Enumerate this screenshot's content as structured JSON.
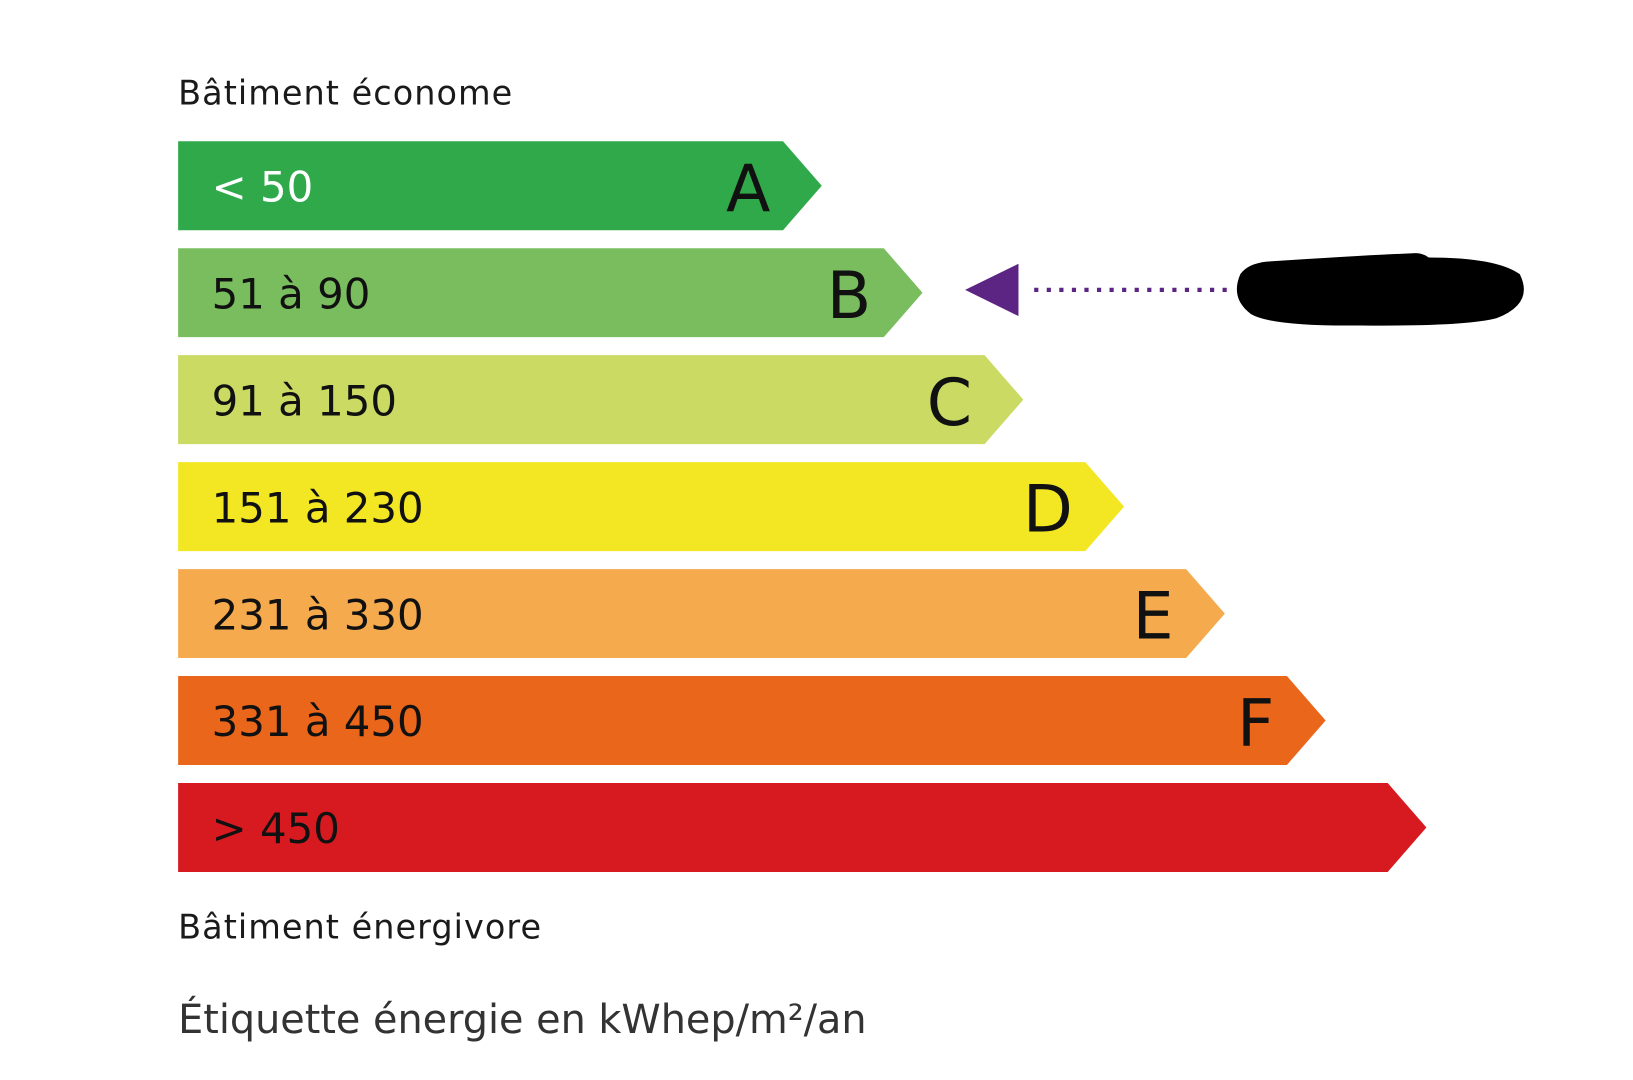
{
  "header_top": "Bâtiment économe",
  "header_bottom": "Bâtiment énergivore",
  "unit_label": "Étiquette énergie en kWhep/m²/an",
  "classes": [
    {
      "letter": "A",
      "range": "< 50",
      "color": "#2fa94a",
      "text_color": "#ffffff"
    },
    {
      "letter": "B",
      "range": "51 à 90",
      "color": "#7abd5e",
      "text_color": "#111111"
    },
    {
      "letter": "C",
      "range": "91 à 150",
      "color": "#cada63",
      "text_color": "#111111"
    },
    {
      "letter": "D",
      "range": "151 à 230",
      "color": "#f3e623",
      "text_color": "#111111"
    },
    {
      "letter": "E",
      "range": "231 à 330",
      "color": "#f4aa4d",
      "text_color": "#111111"
    },
    {
      "letter": "F",
      "range": "331 à 450",
      "color": "#e9661b",
      "text_color": "#111111"
    },
    {
      "letter": "",
      "range": "> 450",
      "color": "#d71a20",
      "text_color": "#111111"
    }
  ],
  "indicator": {
    "class": "B",
    "color": "#5c2483",
    "value_redacted": true
  }
}
